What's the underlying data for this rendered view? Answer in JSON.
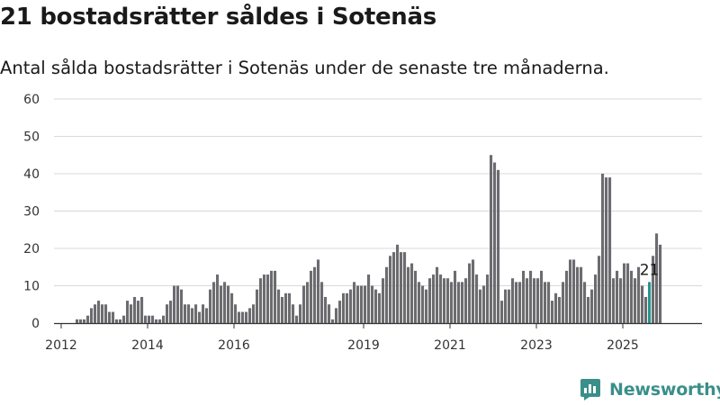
{
  "title": "21 bostadsrätter såldes i Sotenäs",
  "subtitle": "Antal sålda bostadsrätter i Sotenäs under de senaste tre månaderna.",
  "brand": {
    "name": "Newsworthy",
    "icon": "newsworthy-logo-icon"
  },
  "colors": {
    "bar": "#6c6b70",
    "highlight": "#24958e",
    "grid": "#d8d8d8",
    "axis": "#333333",
    "brand": "#3a8f8a"
  },
  "chart_data": {
    "type": "bar",
    "title": "",
    "xlabel": "",
    "ylabel": "",
    "ylim": [
      0,
      60
    ],
    "y_ticks": [
      0,
      10,
      20,
      30,
      40,
      50,
      60
    ],
    "x_tick_labels": [
      {
        "label": "2012",
        "year": 2012
      },
      {
        "label": "2014",
        "year": 2014
      },
      {
        "label": "2016",
        "year": 2016
      },
      {
        "label": "2019",
        "year": 2019
      },
      {
        "label": "2021",
        "year": 2021
      },
      {
        "label": "2023",
        "year": 2023
      },
      {
        "label": "2025",
        "year": 2025
      }
    ],
    "grid": true,
    "legend": "none",
    "start_month": "2011-11",
    "series": [
      {
        "values": [
          0,
          0,
          0,
          0,
          0,
          0,
          1,
          1,
          1,
          2,
          4,
          5,
          6,
          5,
          5,
          3,
          3,
          1,
          1,
          2,
          6,
          5,
          7,
          6,
          7,
          2,
          2,
          2,
          1,
          1,
          2,
          5,
          6,
          10,
          10,
          9,
          5,
          5,
          4,
          5,
          3,
          5,
          4,
          9,
          11,
          13,
          10,
          11,
          10,
          8,
          5,
          3,
          3,
          3,
          4,
          5,
          9,
          12,
          13,
          13,
          14,
          14,
          9,
          7,
          8,
          8,
          5,
          2,
          5,
          10,
          11,
          14,
          15,
          17,
          11,
          7,
          5,
          1,
          4,
          6,
          8,
          8,
          9,
          11,
          10,
          10,
          10,
          13,
          10,
          9,
          8,
          12,
          15,
          18,
          19,
          21,
          19,
          19,
          15,
          16,
          14,
          11,
          10,
          9,
          12,
          13,
          15,
          13,
          12,
          12,
          11,
          14,
          11,
          11,
          12,
          16,
          17,
          13,
          9,
          10,
          13,
          45,
          43,
          41,
          6,
          9,
          9,
          12,
          11,
          11,
          14,
          12,
          14,
          12,
          12,
          14,
          11,
          11,
          6,
          8,
          7,
          11,
          14,
          17,
          17,
          15,
          15,
          11,
          7,
          9,
          13,
          18,
          40,
          39,
          39,
          12,
          14,
          12,
          16,
          16,
          14,
          12,
          15,
          10,
          7,
          11,
          18,
          24,
          21
        ]
      }
    ],
    "highlight": {
      "month": "2025-08",
      "value": 21,
      "label": "21"
    }
  }
}
